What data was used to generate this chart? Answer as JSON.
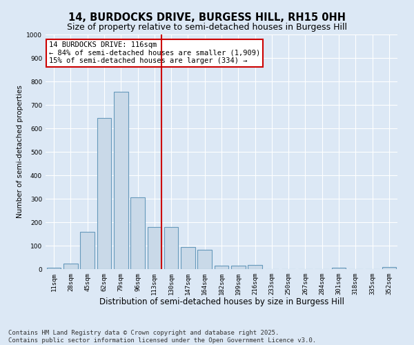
{
  "title": "14, BURDOCKS DRIVE, BURGESS HILL, RH15 0HH",
  "subtitle": "Size of property relative to semi-detached houses in Burgess Hill",
  "xlabel": "Distribution of semi-detached houses by size in Burgess Hill",
  "ylabel": "Number of semi-detached properties",
  "bins": [
    "11sqm",
    "28sqm",
    "45sqm",
    "62sqm",
    "79sqm",
    "96sqm",
    "113sqm",
    "130sqm",
    "147sqm",
    "164sqm",
    "182sqm",
    "199sqm",
    "216sqm",
    "233sqm",
    "250sqm",
    "267sqm",
    "284sqm",
    "301sqm",
    "318sqm",
    "335sqm",
    "352sqm"
  ],
  "bar_values": [
    5,
    25,
    160,
    645,
    755,
    305,
    180,
    180,
    93,
    82,
    15,
    15,
    18,
    0,
    0,
    0,
    0,
    5,
    0,
    0,
    8
  ],
  "bar_color": "#c9d9e8",
  "bar_edge_color": "#6699bb",
  "vline_index": 6,
  "vline_color": "#cc0000",
  "annotation_text": "14 BURDOCKS DRIVE: 116sqm\n← 84% of semi-detached houses are smaller (1,909)\n15% of semi-detached houses are larger (334) →",
  "annotation_box_color": "#ffffff",
  "annotation_box_edge": "#cc0000",
  "ylim": [
    0,
    1000
  ],
  "yticks": [
    0,
    100,
    200,
    300,
    400,
    500,
    600,
    700,
    800,
    900,
    1000
  ],
  "background_color": "#dce8f5",
  "plot_bg_color": "#dce8f5",
  "footer": "Contains HM Land Registry data © Crown copyright and database right 2025.\nContains public sector information licensed under the Open Government Licence v3.0.",
  "title_fontsize": 10.5,
  "subtitle_fontsize": 9,
  "xlabel_fontsize": 8.5,
  "ylabel_fontsize": 7.5,
  "tick_fontsize": 6.5,
  "footer_fontsize": 6.5,
  "annotation_fontsize": 7.5
}
